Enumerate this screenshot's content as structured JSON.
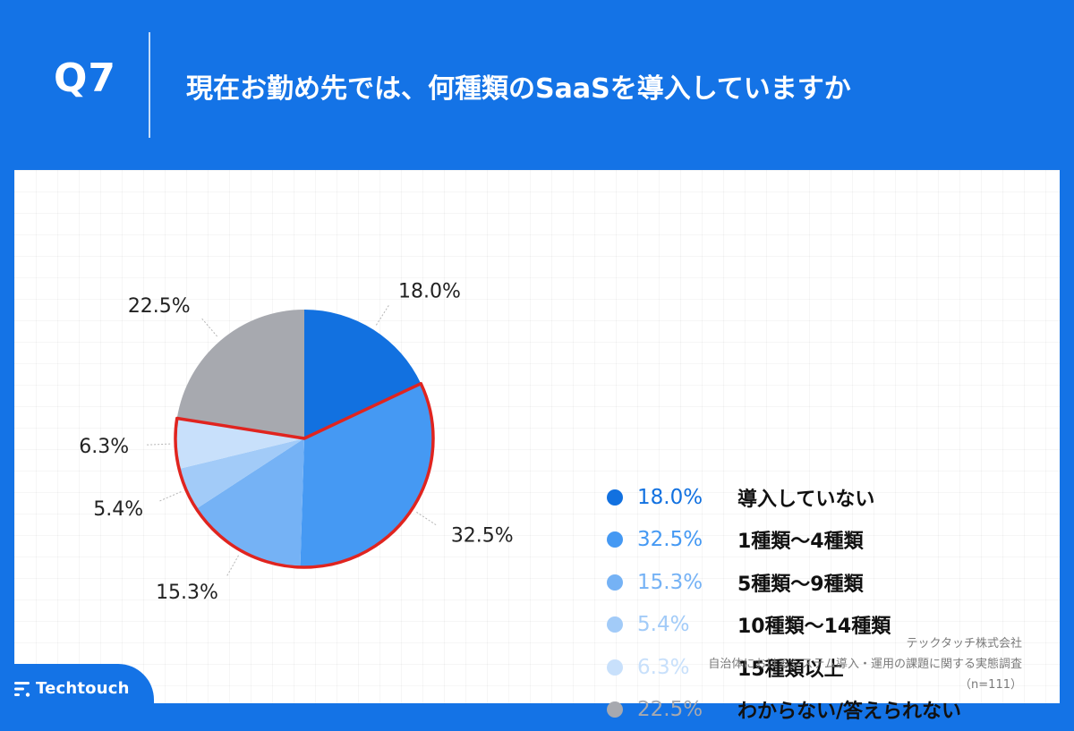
{
  "header": {
    "question_number": "Q7",
    "question": "現在お勤め先では、何種類のSaaSを導入していますか"
  },
  "chart_data": {
    "type": "pie",
    "title": "現在お勤め先では、何種類のSaaSを導入していますか",
    "categories": [
      "導入していない",
      "1種類〜4種類",
      "5種類〜9種類",
      "10種類〜14種類",
      "15種類以上",
      "わからない/答えられない"
    ],
    "values": [
      18.0,
      32.5,
      15.3,
      5.4,
      6.3,
      22.5
    ],
    "labels": [
      "18.0%",
      "32.5%",
      "15.3%",
      "5.4%",
      "6.3%",
      "22.5%"
    ],
    "colors": [
      "#1271e0",
      "#4599f3",
      "#75b2f5",
      "#a2cbf8",
      "#c8e0fb",
      "#a7a9af"
    ],
    "start": "12 o'clock, clockwise",
    "highlighted_group": [
      "1種類〜4種類",
      "5種類〜9種類",
      "10種類〜14種類",
      "15種類以上"
    ],
    "highlight_color": "#e0241f"
  },
  "legend": {
    "items": [
      {
        "value": "18.0%",
        "label": "導入していない",
        "color": "#1271e0"
      },
      {
        "value": "32.5%",
        "label": "1種類〜4種類",
        "color": "#4599f3"
      },
      {
        "value": "15.3%",
        "label": "5種類〜9種類",
        "color": "#75b2f5"
      },
      {
        "value": "5.4%",
        "label": "10種類〜14種類",
        "color": "#a2cbf8"
      },
      {
        "value": "6.3%",
        "label": "15種類以上",
        "color": "#c8e0fb"
      },
      {
        "value": "22.5%",
        "label": "わからない/答えられない",
        "color": "#a7a9af"
      }
    ]
  },
  "footer": {
    "company": "テックタッチ株式会社",
    "survey": "自治体におけるシステム導入・運用の課題に関する実態調査",
    "sample": "（n=111）"
  },
  "logo": {
    "text": "Techtouch",
    "icon": "techtouch-logo-icon"
  }
}
